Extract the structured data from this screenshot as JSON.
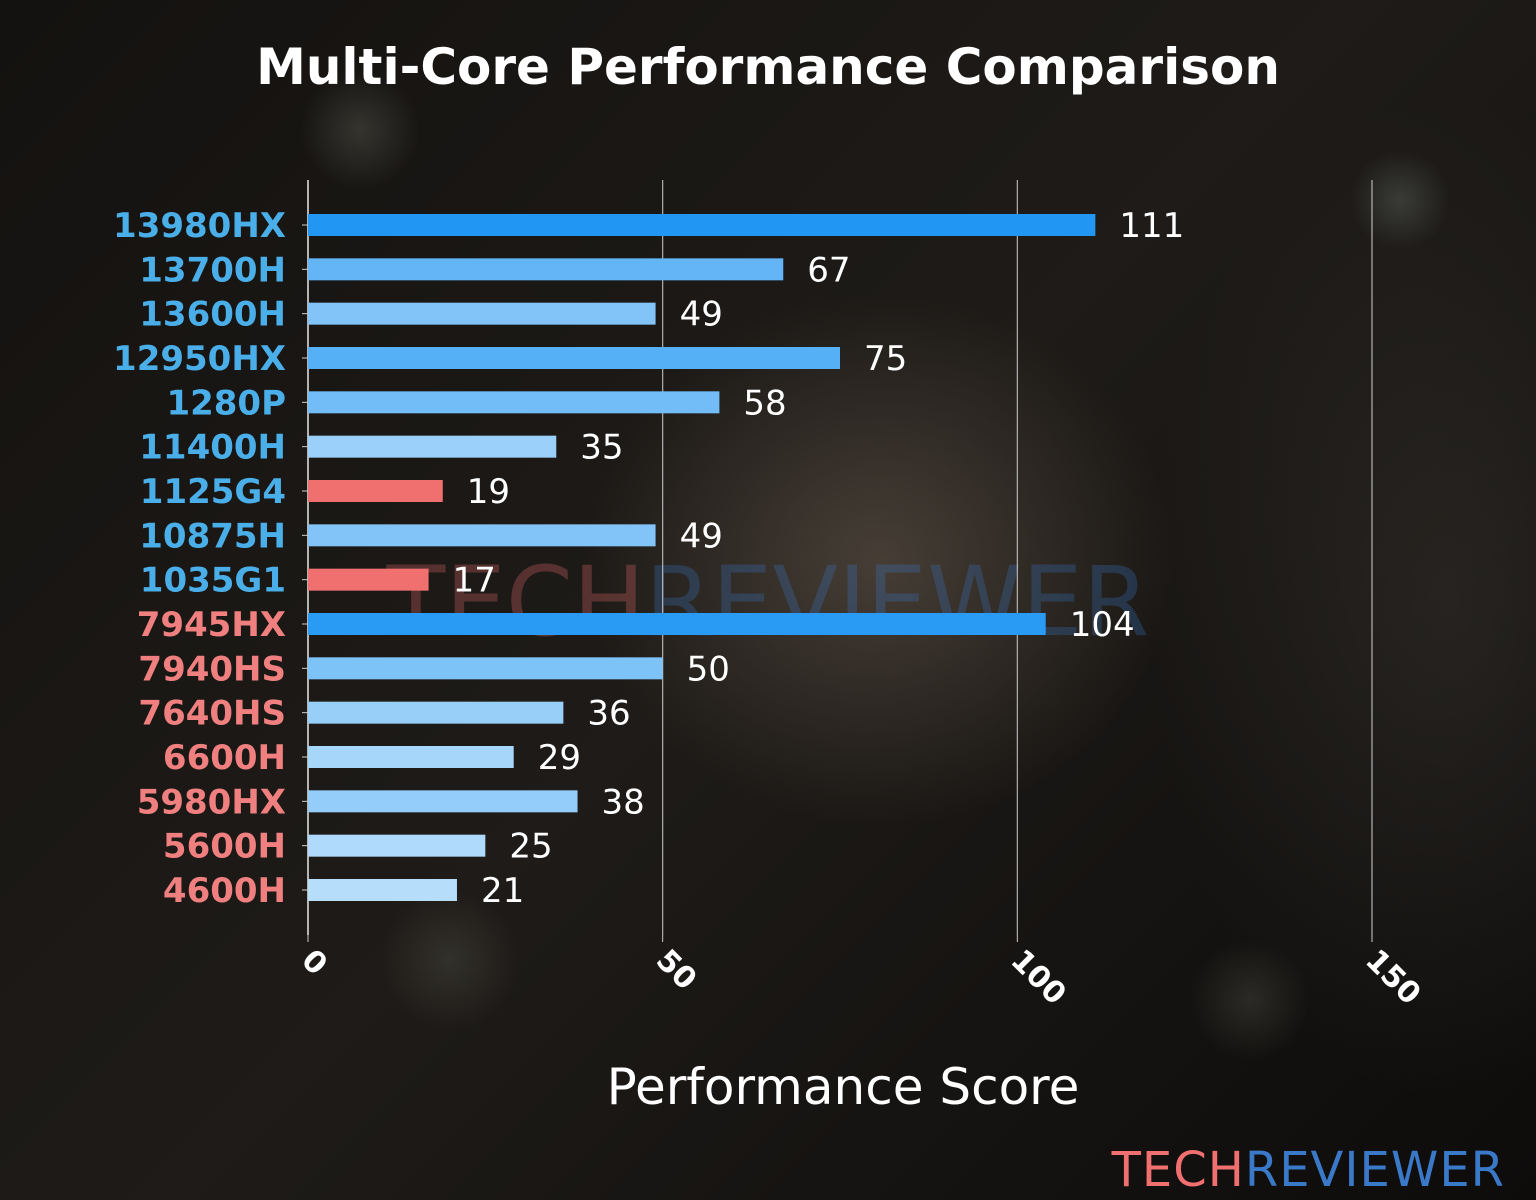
{
  "chart_data": {
    "type": "bar",
    "orientation": "horizontal",
    "title": "Multi-Core Performance Comparison",
    "xlabel": "Performance Score",
    "ylabel": "",
    "xlim": [
      0,
      150
    ],
    "xticks": [
      0,
      50,
      100,
      150
    ],
    "grid": "vertical",
    "categories": [
      "13980HX",
      "13700H",
      "13600H",
      "12950HX",
      "1280P",
      "11400H",
      "1125G4",
      "10875H",
      "1035G1",
      "7945HX",
      "7940HS",
      "7640HS",
      "6600H",
      "5980HX",
      "5600H",
      "4600H"
    ],
    "values": [
      111,
      67,
      49,
      75,
      58,
      35,
      19,
      49,
      17,
      104,
      50,
      36,
      29,
      38,
      25,
      21
    ],
    "bar_colors": [
      "#2196F3",
      "#64B5F6",
      "#82C4F8",
      "#55B0F6",
      "#72BDF7",
      "#9AD0FA",
      "#F07070",
      "#82C4F8",
      "#F07070",
      "#2A9BF4",
      "#7EC3F8",
      "#98CFF9",
      "#A6D6FA",
      "#94CDF9",
      "#AFDAFB",
      "#B6DEFB"
    ],
    "label_colors": [
      "#4AAEE8",
      "#4AAEE8",
      "#4AAEE8",
      "#4AAEE8",
      "#4AAEE8",
      "#4AAEE8",
      "#4AAEE8",
      "#4AAEE8",
      "#4AAEE8",
      "#F08080",
      "#F08080",
      "#F08080",
      "#F08080",
      "#F08080",
      "#F08080",
      "#F08080"
    ]
  },
  "watermark": {
    "part1": "TECH",
    "part2": "REVIEWER",
    "color1": "#F07070",
    "color2": "#3A78C8"
  }
}
